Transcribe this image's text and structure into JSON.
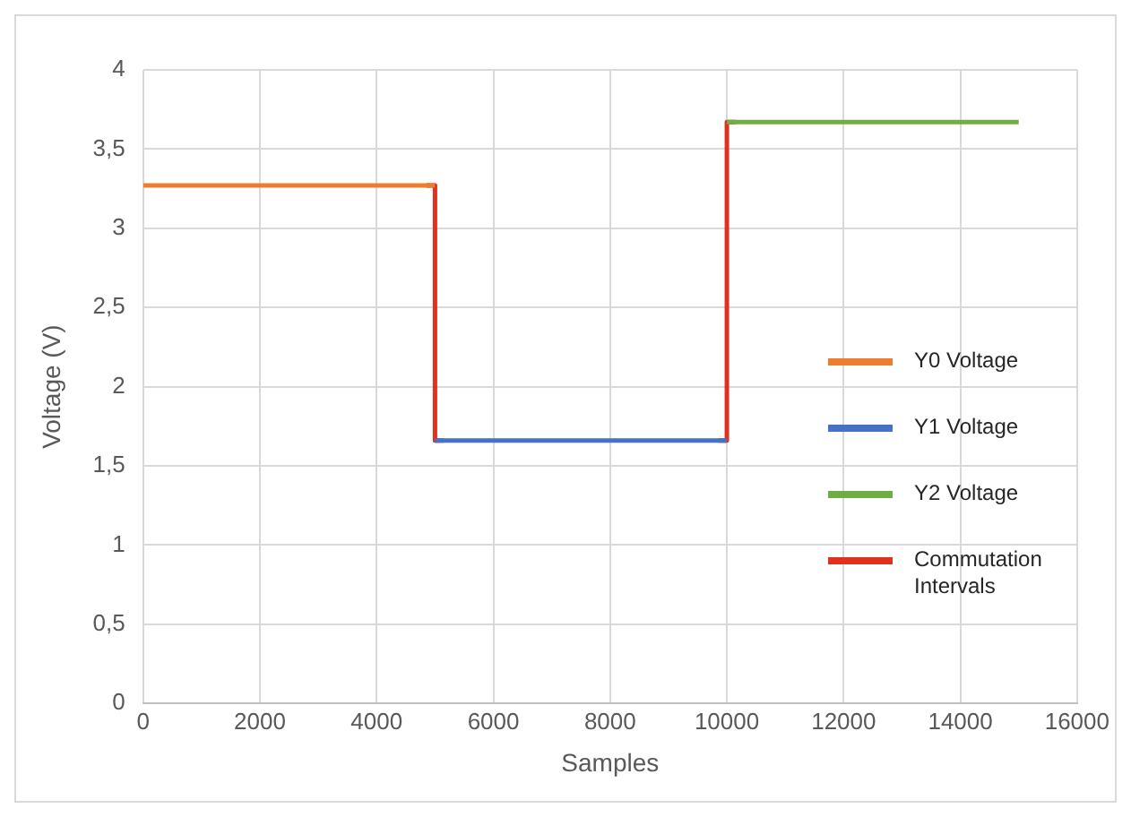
{
  "chart_data": {
    "type": "line",
    "xlabel": "Samples",
    "ylabel": "Voltage (V)",
    "xlim": [
      0,
      16000
    ],
    "xticks": [
      0,
      2000,
      4000,
      6000,
      8000,
      10000,
      12000,
      14000,
      16000
    ],
    "ylim": [
      0,
      4
    ],
    "yticks": [
      0,
      {
        "value": 0.5,
        "label": "0,5"
      },
      1,
      {
        "value": 1.5,
        "label": "1,5"
      },
      2,
      {
        "value": 2.5,
        "label": "2,5"
      },
      3,
      {
        "value": 3.5,
        "label": "3,5"
      },
      4
    ],
    "grid": true,
    "legend": "right",
    "marker": "none",
    "series": [
      {
        "name": "Y0 Voltage",
        "color": "#ed7d31",
        "x": [
          0,
          5000
        ],
        "values": [
          3.27,
          3.27
        ]
      },
      {
        "name": "Y1 Voltage",
        "color": "#4472c4",
        "x": [
          5000,
          10000
        ],
        "values": [
          1.66,
          1.66
        ]
      },
      {
        "name": "Y2 Voltage",
        "color": "#70ad47",
        "x": [
          10000,
          15000
        ],
        "values": [
          3.67,
          3.67
        ]
      },
      {
        "name": "Commutation Intervals",
        "color": "#e0301e",
        "x": [
          4850,
          5000,
          5000,
          5150,
          7500,
          9850,
          10000,
          10000,
          10150
        ],
        "values": [
          3.27,
          3.27,
          1.66,
          1.66,
          null,
          1.66,
          1.66,
          3.67,
          3.67
        ]
      }
    ]
  }
}
